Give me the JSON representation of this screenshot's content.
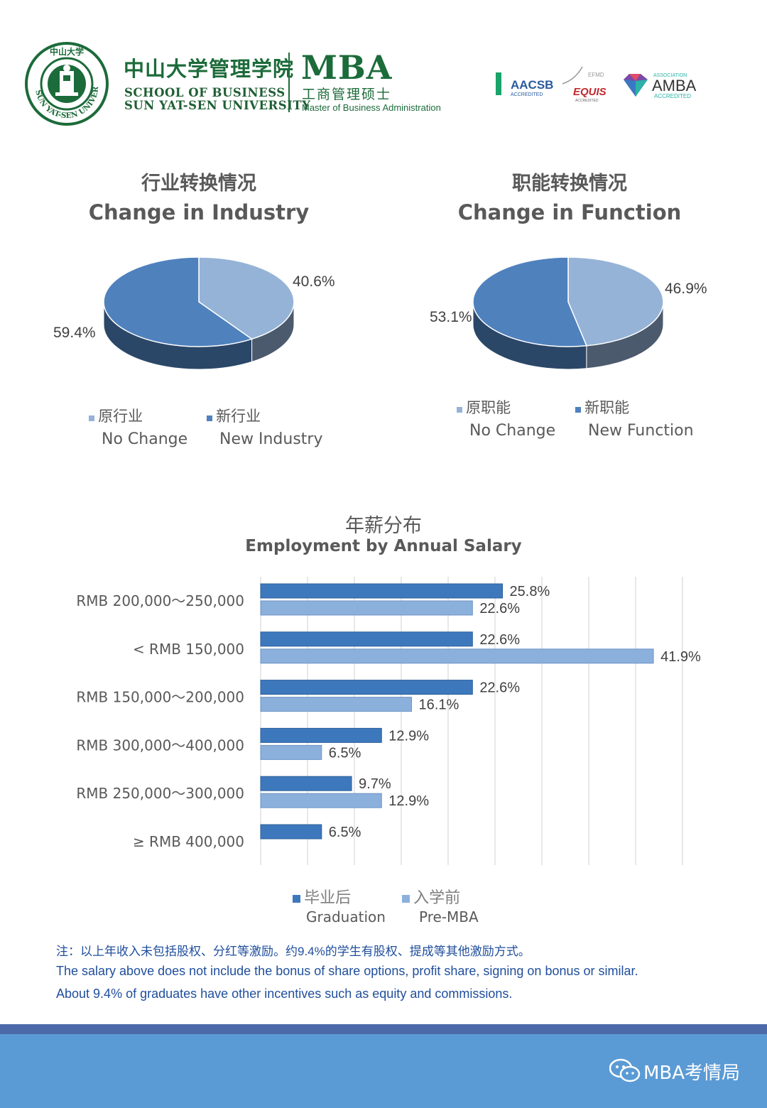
{
  "header": {
    "seal_text": "SUN YAT-SEN UNIVERSITY",
    "seal_cn": "中山大学",
    "school_cn": "中山大学管理学院",
    "school_en_line1": "SCHOOL OF BUSINESS",
    "school_en_line2": "SUN YAT-SEN UNIVERSITY",
    "mba": "MBA",
    "mba_cn": "工商管理硕士",
    "mba_en": "Master of Business Administration",
    "badges": {
      "aacsb": "AACSB",
      "aacsb_sub": "ACCREDITED",
      "efmd": "EFMD",
      "equis": "EQUIS",
      "equis_sub": "ACCREDITED",
      "amba_assoc": "ASSOCIATION",
      "amba": "AMBA",
      "amba_sub": "ACCREDITED"
    }
  },
  "chart_data": [
    {
      "type": "pie",
      "title_cn": "行业转换情况",
      "title": "Change in Industry",
      "slices": [
        {
          "label_cn": "原行业",
          "label": "No Change",
          "value": 40.6,
          "value_label": "40.6%",
          "color": "#95b3d7"
        },
        {
          "label_cn": "新行业",
          "label": "New Industry",
          "value": 59.4,
          "value_label": "59.4%",
          "color": "#4f81bd"
        }
      ]
    },
    {
      "type": "pie",
      "title_cn": "职能转换情况",
      "title": "Change in Function",
      "slices": [
        {
          "label_cn": "原职能",
          "label": "No Change",
          "value": 46.9,
          "value_label": "46.9%",
          "color": "#95b3d7"
        },
        {
          "label_cn": "新职能",
          "label": "New Function",
          "value": 53.1,
          "value_label": "53.1%",
          "color": "#4f81bd"
        }
      ]
    },
    {
      "type": "bar",
      "orientation": "horizontal",
      "title_cn": "年薪分布",
      "title": "Employment by Annual Salary",
      "categories": [
        "RMB 200,000～250,000",
        "< RMB 150,000",
        "RMB 150,000～200,000",
        "RMB 300,000～400,000",
        "RMB 250,000～300,000",
        "≥ RMB 400,000"
      ],
      "series": [
        {
          "name_cn": "毕业后",
          "name": "Graduation",
          "values": [
            25.8,
            22.6,
            22.6,
            12.9,
            9.7,
            6.5
          ],
          "value_labels": [
            "25.8%",
            "22.6%",
            "22.6%",
            "12.9%",
            "9.7%",
            "6.5%"
          ],
          "color": "#3d78bd"
        },
        {
          "name_cn": "入学前",
          "name": "Pre-MBA",
          "values": [
            22.6,
            41.9,
            16.1,
            6.5,
            12.9,
            null
          ],
          "value_labels": [
            "22.6%",
            "41.9%",
            "16.1%",
            "6.5%",
            "12.9%",
            ""
          ],
          "color": "#8cb0dc"
        }
      ],
      "xlim": [
        0,
        45
      ],
      "grid": true,
      "legend": "bottom"
    }
  ],
  "notes": {
    "cn": "注：以上年收入未包括股权、分红等激励。约9.4%的学生有股权、提成等其他激励方式。",
    "en1": "The salary above does not include the bonus of share options, profit share, signing on bonus or similar.",
    "en2": "About 9.4% of graduates have other incentives such as equity and commissions."
  },
  "footer": {
    "wechat_label": "MBA考情局",
    "icon": "wechat-icon",
    "color": "#5b9bd5"
  }
}
